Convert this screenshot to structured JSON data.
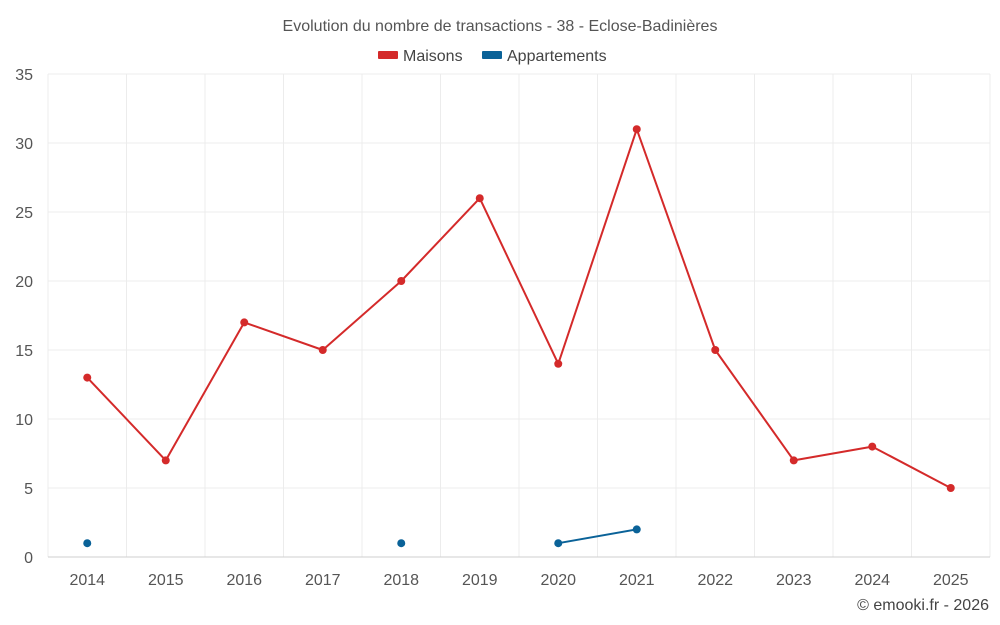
{
  "chart_data": {
    "type": "line",
    "title": "Evolution du nombre de transactions - 38 - Eclose-Badinières",
    "xlabel": "",
    "ylabel": "",
    "categories": [
      "2014",
      "2015",
      "2016",
      "2017",
      "2018",
      "2019",
      "2020",
      "2021",
      "2022",
      "2023",
      "2024",
      "2025"
    ],
    "ylim": [
      0,
      35
    ],
    "yticks": [
      0,
      5,
      10,
      15,
      20,
      25,
      30,
      35
    ],
    "grid": true,
    "legend_position": "top-center",
    "series": [
      {
        "name": "Maisons",
        "color": "#d42a2a",
        "values": [
          13,
          7,
          17,
          15,
          20,
          26,
          14,
          31,
          15,
          7,
          8,
          5
        ]
      },
      {
        "name": "Appartements",
        "color": "#0a6298",
        "values": [
          1,
          null,
          null,
          null,
          1,
          null,
          1,
          2,
          null,
          null,
          null,
          null
        ]
      }
    ]
  },
  "credit": "© emooki.fr - 2026"
}
